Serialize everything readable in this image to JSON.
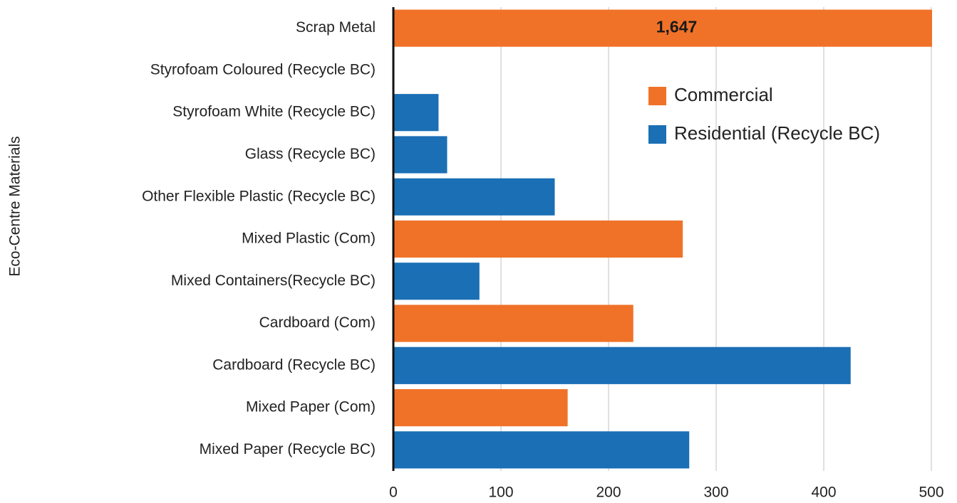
{
  "chart_data": {
    "type": "barh",
    "ylabel": "Eco-Centre Materials",
    "categories": [
      "Scrap Metal",
      "Styrofoam Coloured (Recycle BC)",
      "Styrofoam White (Recycle BC)",
      "Glass (Recycle BC)",
      "Other Flexible Plastic (Recycle BC)",
      "Mixed Plastic (Com)",
      "Mixed Containers(Recycle BC)",
      "Cardboard (Com)",
      "Cardboard (Recycle BC)",
      "Mixed Paper (Com)",
      "Mixed Paper (Recycle BC)"
    ],
    "series": [
      {
        "name": "Commercial",
        "color": "#f07228",
        "values": [
          1647,
          null,
          null,
          null,
          null,
          269,
          null,
          223,
          null,
          162,
          null
        ],
        "value_labels": [
          "1,647",
          null,
          null,
          null,
          null,
          null,
          null,
          null,
          null,
          null,
          null
        ]
      },
      {
        "name": "Residential (Recycle BC)",
        "color": "#1a6fb5",
        "values": [
          null,
          null,
          42,
          50,
          150,
          null,
          80,
          null,
          425,
          null,
          275
        ]
      }
    ],
    "xlim": [
      0,
      500
    ],
    "xticks": [
      0,
      100,
      200,
      300,
      400,
      500
    ],
    "grid": true
  }
}
